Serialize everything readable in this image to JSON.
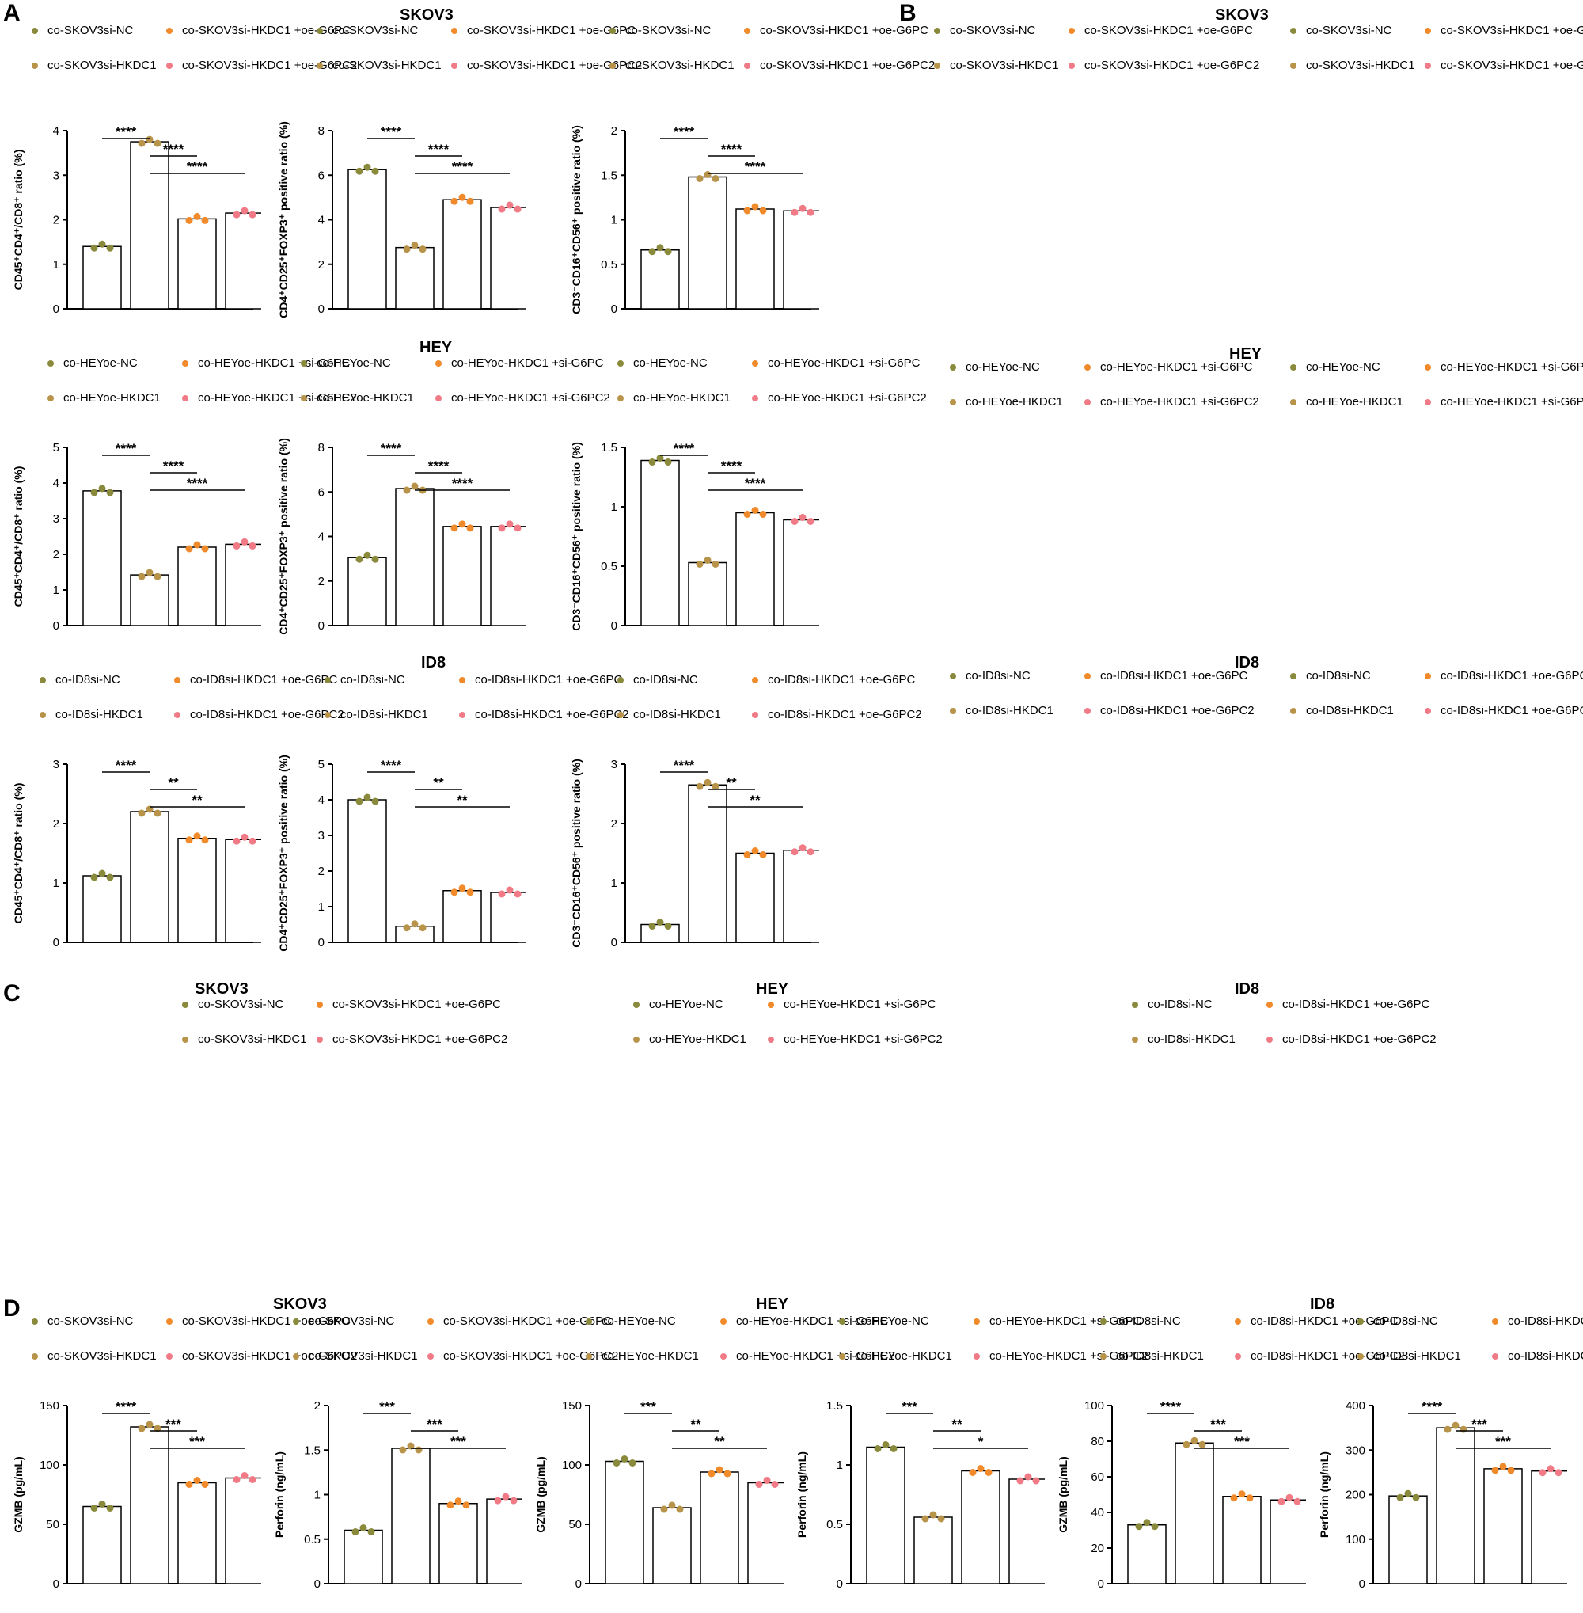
{
  "panels": {
    "A": {
      "label": "A",
      "titles": [
        "SKOV3",
        "HEY",
        "ID8"
      ]
    },
    "B": {
      "label": "B",
      "titles": [
        "SKOV3",
        "HEY",
        "ID8"
      ]
    },
    "C": {
      "label": "C",
      "titles": [
        "SKOV3",
        "HEY",
        "ID8"
      ]
    },
    "D": {
      "label": "D",
      "titles": [
        "SKOV3",
        "HEY",
        "ID8"
      ]
    }
  },
  "colors": {
    "g1": "#8a8a3c",
    "g2": "#b8934a",
    "g3": "#f08a2a",
    "g4": "#f07a85"
  },
  "chart_data": [
    {
      "id": "a1",
      "type": "bar",
      "title": "SKOV3",
      "ylabel": "CD45⁺CD4⁺/CD8⁺ ratio (%)",
      "ylim": [
        0,
        4
      ],
      "yticks": [
        0,
        1,
        2,
        3,
        4
      ],
      "values": [
        1.4,
        3.75,
        2.02,
        2.15
      ],
      "sig": [
        [
          "****",
          0,
          1
        ],
        [
          "****",
          1,
          2
        ],
        [
          "****",
          1,
          3
        ]
      ]
    },
    {
      "id": "a2",
      "type": "bar",
      "ylabel": "CD4⁺CD25⁺FOXP3⁺ positive ratio (%)",
      "ylim": [
        0,
        8
      ],
      "yticks": [
        0,
        2,
        4,
        6,
        8
      ],
      "values": [
        6.25,
        2.75,
        4.9,
        4.55
      ],
      "sig": [
        [
          "****",
          0,
          1
        ],
        [
          "****",
          1,
          2
        ],
        [
          "****",
          1,
          3
        ]
      ]
    },
    {
      "id": "a3",
      "type": "bar",
      "ylabel": "CD3⁻CD16⁺CD56⁺ positive ratio (%)",
      "ylim": [
        0,
        2
      ],
      "yticks": [
        0.0,
        0.5,
        1.0,
        1.5,
        2.0
      ],
      "values": [
        0.66,
        1.48,
        1.12,
        1.1
      ],
      "sig": [
        [
          "****",
          0,
          1
        ],
        [
          "****",
          1,
          2
        ],
        [
          "****",
          1,
          3
        ]
      ]
    },
    {
      "id": "a4",
      "type": "bar",
      "title": "HEY",
      "ylabel": "CD45⁺CD4⁺/CD8⁺ ratio (%)",
      "ylim": [
        0,
        5
      ],
      "yticks": [
        0,
        1,
        2,
        3,
        4,
        5
      ],
      "values": [
        3.78,
        1.42,
        2.2,
        2.28
      ],
      "sig": [
        [
          "****",
          0,
          1
        ],
        [
          "****",
          1,
          2
        ],
        [
          "****",
          1,
          3
        ]
      ]
    },
    {
      "id": "a5",
      "type": "bar",
      "ylabel": "CD4⁺CD25⁺FOXP3⁺ positive ratio (%)",
      "ylim": [
        0,
        8
      ],
      "yticks": [
        0,
        2,
        4,
        6,
        8
      ],
      "values": [
        3.05,
        6.15,
        4.45,
        4.45
      ],
      "sig": [
        [
          "****",
          0,
          1
        ],
        [
          "****",
          1,
          2
        ],
        [
          "****",
          1,
          3
        ]
      ]
    },
    {
      "id": "a6",
      "type": "bar",
      "ylabel": "CD3⁻CD16⁺CD56⁺ positive ratio (%)",
      "ylim": [
        0,
        1.5
      ],
      "yticks": [
        0.0,
        0.5,
        1.0,
        1.5
      ],
      "values": [
        1.39,
        0.53,
        0.95,
        0.89
      ],
      "sig": [
        [
          "****",
          0,
          1
        ],
        [
          "****",
          1,
          2
        ],
        [
          "****",
          1,
          3
        ]
      ]
    },
    {
      "id": "a7",
      "type": "bar",
      "title": "ID8",
      "ylabel": "CD45⁺CD4⁺/CD8⁺ ratio (%)",
      "ylim": [
        0,
        3
      ],
      "yticks": [
        0,
        1,
        2,
        3
      ],
      "values": [
        1.12,
        2.2,
        1.75,
        1.73
      ],
      "sig": [
        [
          "****",
          0,
          1
        ],
        [
          "**",
          1,
          2
        ],
        [
          "**",
          1,
          3
        ]
      ]
    },
    {
      "id": "a8",
      "type": "bar",
      "ylabel": "CD4⁺CD25⁺FOXP3⁺ positive ratio (%)",
      "ylim": [
        0,
        5
      ],
      "yticks": [
        0,
        1,
        2,
        3,
        4,
        5
      ],
      "values": [
        4.0,
        0.45,
        1.45,
        1.4
      ],
      "sig": [
        [
          "****",
          0,
          1
        ],
        [
          "**",
          1,
          2
        ],
        [
          "**",
          1,
          3
        ]
      ]
    },
    {
      "id": "a9",
      "type": "bar",
      "ylabel": "CD3⁻CD16⁺CD56⁺ positive ratio (%)",
      "ylim": [
        0,
        3
      ],
      "yticks": [
        0,
        1,
        2,
        3
      ],
      "values": [
        0.3,
        2.65,
        1.5,
        1.55
      ],
      "sig": [
        [
          "****",
          0,
          1
        ],
        [
          "**",
          1,
          2
        ],
        [
          "**",
          1,
          3
        ]
      ]
    },
    {
      "id": "d1",
      "type": "bar",
      "title": "SKOV3",
      "ylabel": "GZMB (pg/mL)",
      "ylim": [
        0,
        150
      ],
      "yticks": [
        0,
        50,
        100,
        150
      ],
      "values": [
        65,
        132,
        85,
        89
      ],
      "sig": [
        [
          "****",
          0,
          1
        ],
        [
          "***",
          1,
          2
        ],
        [
          "***",
          1,
          3
        ]
      ]
    },
    {
      "id": "d2",
      "type": "bar",
      "ylabel": "Perforin (ng/mL)",
      "ylim": [
        0,
        2
      ],
      "yticks": [
        0.0,
        0.5,
        1.0,
        1.5,
        2.0
      ],
      "values": [
        0.6,
        1.52,
        0.9,
        0.95
      ],
      "sig": [
        [
          "***",
          0,
          1
        ],
        [
          "***",
          1,
          2
        ],
        [
          "***",
          1,
          3
        ]
      ]
    },
    {
      "id": "d3",
      "type": "bar",
      "title": "HEY",
      "ylabel": "GZMB (pg/mL)",
      "ylim": [
        0,
        150
      ],
      "yticks": [
        0,
        50,
        100,
        150
      ],
      "values": [
        103,
        64,
        94,
        85
      ],
      "sig": [
        [
          "***",
          0,
          1
        ],
        [
          "**",
          1,
          2
        ],
        [
          "**",
          1,
          3
        ]
      ]
    },
    {
      "id": "d4",
      "type": "bar",
      "ylabel": "Perforin (ng/mL)",
      "ylim": [
        0,
        1.5
      ],
      "yticks": [
        0.0,
        0.5,
        1.0,
        1.5
      ],
      "values": [
        1.15,
        0.56,
        0.95,
        0.88
      ],
      "sig": [
        [
          "***",
          0,
          1
        ],
        [
          "**",
          1,
          2
        ],
        [
          "*",
          1,
          3
        ]
      ]
    },
    {
      "id": "d5",
      "type": "bar",
      "title": "ID8",
      "ylabel": "GZMB (pg/mL)",
      "ylim": [
        0,
        100
      ],
      "yticks": [
        0,
        20,
        40,
        60,
        80,
        100
      ],
      "values": [
        33,
        79,
        49,
        47
      ],
      "sig": [
        [
          "****",
          0,
          1
        ],
        [
          "***",
          1,
          2
        ],
        [
          "***",
          1,
          3
        ]
      ]
    },
    {
      "id": "d6",
      "type": "bar",
      "ylabel": "Perforin (ng/mL)",
      "ylim": [
        0,
        400
      ],
      "yticks": [
        0,
        100,
        200,
        300,
        400
      ],
      "values": [
        197,
        350,
        258,
        253
      ],
      "sig": [
        [
          "****",
          0,
          1
        ],
        [
          "***",
          1,
          2
        ],
        [
          "***",
          1,
          3
        ]
      ]
    }
  ],
  "legend": {
    "skov3": [
      "co-SKOV3si-NC",
      "co-SKOV3si-HKDC1",
      "co-SKOV3si-HKDC1 +oe-G6PC",
      "co-SKOV3si-HKDC1 +oe-G6PC2"
    ],
    "hey": [
      "co-HEYoe-NC",
      "co-HEYoe-HKDC1",
      "co-HEYoe-HKDC1 +si-G6PC",
      "co-HEYoe-HKDC1 +si-G6PC2"
    ],
    "id8": [
      "co-ID8si-NC",
      "co-ID8si-HKDC1",
      "co-ID8si-HKDC1 +oe-G6PC",
      "co-ID8si-HKDC1 +oe-G6PC2"
    ]
  }
}
